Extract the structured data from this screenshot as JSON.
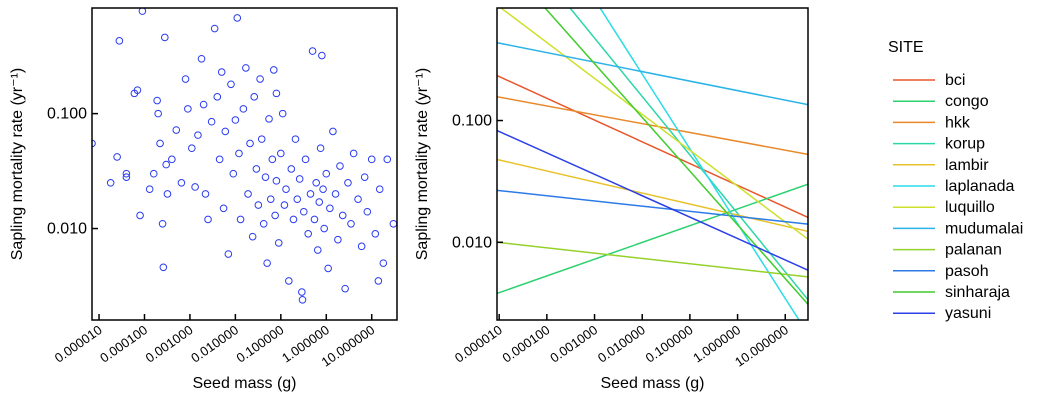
{
  "chart_data": [
    {
      "type": "scatter",
      "xlabel": "Seed mass (g)",
      "ylabel": "Sapling mortality rate (yr⁻¹)",
      "xscale": "log",
      "yscale": "log",
      "xlim": [
        7e-06,
        36
      ],
      "ylim": [
        0.0016,
        0.83
      ],
      "xticks": [
        {
          "value": 1e-05,
          "label": "0.000010"
        },
        {
          "value": 0.0001,
          "label": "0.000100"
        },
        {
          "value": 0.001,
          "label": "0.001000"
        },
        {
          "value": 0.01,
          "label": "0.010000"
        },
        {
          "value": 0.1,
          "label": "0.100000"
        },
        {
          "value": 1,
          "label": "1.000000"
        },
        {
          "value": 10,
          "label": "10.000000"
        }
      ],
      "yticks": [
        {
          "value": 0.01,
          "label": "0.010"
        },
        {
          "value": 0.1,
          "label": "0.100"
        }
      ],
      "color": "#2a3cf0",
      "x": [
        7e-06,
        1.8e-05,
        2.5e-05,
        2.8e-05,
        4e-05,
        4e-05,
        6e-05,
        7e-05,
        8e-05,
        9e-05,
        0.00013,
        0.00016,
        0.00019,
        0.0002,
        0.00022,
        0.00025,
        0.00026,
        0.00028,
        0.0003,
        0.00032,
        0.0004,
        0.0005,
        0.00065,
        0.0008,
        0.0009,
        0.0011,
        0.0013,
        0.0015,
        0.0018,
        0.002,
        0.0022,
        0.0025,
        0.003,
        0.0035,
        0.004,
        0.0045,
        0.005,
        0.0055,
        0.006,
        0.007,
        0.008,
        0.009,
        0.01,
        0.011,
        0.012,
        0.013,
        0.015,
        0.017,
        0.019,
        0.021,
        0.024,
        0.026,
        0.029,
        0.032,
        0.035,
        0.038,
        0.042,
        0.046,
        0.05,
        0.055,
        0.06,
        0.065,
        0.07,
        0.075,
        0.08,
        0.09,
        0.1,
        0.11,
        0.12,
        0.13,
        0.15,
        0.17,
        0.19,
        0.21,
        0.23,
        0.26,
        0.29,
        0.32,
        0.35,
        0.4,
        0.45,
        0.5,
        0.55,
        0.6,
        0.65,
        0.7,
        0.75,
        0.8,
        0.85,
        0.9,
        1,
        1.1,
        1.2,
        1.4,
        1.6,
        1.8,
        2,
        2.3,
        2.6,
        3,
        3.5,
        4,
        5,
        6,
        7,
        8,
        10,
        12,
        15,
        18,
        22,
        30,
        14,
        0.3,
        0.08
      ],
      "y": [
        0.055,
        0.025,
        0.042,
        0.43,
        0.03,
        0.028,
        0.15,
        0.16,
        0.013,
        0.78,
        0.022,
        0.03,
        0.13,
        0.1,
        0.055,
        0.011,
        0.0046,
        0.46,
        0.036,
        0.02,
        0.04,
        0.072,
        0.025,
        0.2,
        0.11,
        0.05,
        0.023,
        0.065,
        0.3,
        0.12,
        0.02,
        0.012,
        0.085,
        0.55,
        0.14,
        0.04,
        0.23,
        0.015,
        0.07,
        0.006,
        0.18,
        0.03,
        0.088,
        0.68,
        0.045,
        0.012,
        0.11,
        0.25,
        0.02,
        0.055,
        0.0085,
        0.14,
        0.033,
        0.016,
        0.2,
        0.06,
        0.011,
        0.028,
        0.005,
        0.09,
        0.018,
        0.04,
        0.24,
        0.013,
        0.026,
        0.0075,
        0.045,
        0.1,
        0.016,
        0.022,
        0.0035,
        0.033,
        0.012,
        0.06,
        0.018,
        0.027,
        0.0028,
        0.014,
        0.04,
        0.009,
        0.02,
        0.35,
        0.012,
        0.025,
        0.0065,
        0.017,
        0.05,
        0.32,
        0.022,
        0.01,
        0.03,
        0.0045,
        0.015,
        0.07,
        0.02,
        0.008,
        0.035,
        0.013,
        0.003,
        0.025,
        0.011,
        0.045,
        0.018,
        0.007,
        0.028,
        0.014,
        0.04,
        0.009,
        0.022,
        0.005,
        0.04,
        0.011,
        0.0035,
        0.0024,
        0.15
      ]
    },
    {
      "type": "line",
      "xlabel": "Seed mass (g)",
      "ylabel": "Sapling mortality rate (yr⁻¹)",
      "xscale": "log",
      "yscale": "log",
      "xlim": [
        9e-06,
        30
      ],
      "ylim": [
        0.0023,
        0.84
      ],
      "xticks": [
        {
          "value": 1e-05,
          "label": "0.000010"
        },
        {
          "value": 0.0001,
          "label": "0.000100"
        },
        {
          "value": 0.001,
          "label": "0.001000"
        },
        {
          "value": 0.01,
          "label": "0.010000"
        },
        {
          "value": 0.1,
          "label": "0.100000"
        },
        {
          "value": 1,
          "label": "1.000000"
        },
        {
          "value": 10,
          "label": "10.000000"
        }
      ],
      "yticks": [
        {
          "value": 0.01,
          "label": "0.010"
        },
        {
          "value": 0.1,
          "label": "0.100"
        }
      ],
      "legend_title": "SITE",
      "x": [
        9e-06,
        30
      ],
      "series": [
        {
          "name": "bci",
          "color": "#e8552b",
          "values": [
            0.234,
            0.016
          ]
        },
        {
          "name": "congo",
          "color": "#2bd16e",
          "values": [
            0.0038,
            0.03
          ]
        },
        {
          "name": "hkk",
          "color": "#e8892b",
          "values": [
            0.157,
            0.0527
          ]
        },
        {
          "name": "korup",
          "color": "#2bd6a8",
          "values": [
            4.57,
            0.00337
          ]
        },
        {
          "name": "lambir",
          "color": "#e8c22b",
          "values": [
            0.0479,
            0.0123
          ]
        },
        {
          "name": "laplanada",
          "color": "#2bdbe8",
          "values": [
            17.9,
            0.00176
          ]
        },
        {
          "name": "luquillo",
          "color": "#cde02b",
          "values": [
            0.89,
            0.0106
          ]
        },
        {
          "name": "mudumalai",
          "color": "#2bb3e8",
          "values": [
            0.436,
            0.135
          ]
        },
        {
          "name": "palanan",
          "color": "#94d12b",
          "values": [
            0.01,
            0.0052
          ]
        },
        {
          "name": "pasoh",
          "color": "#2b7ae8",
          "values": [
            0.0267,
            0.0141
          ]
        },
        {
          "name": "sinharaja",
          "color": "#40cc2b",
          "values": [
            2.34,
            0.0031
          ]
        },
        {
          "name": "yasuni",
          "color": "#2b40e8",
          "values": [
            0.0828,
            0.0059
          ]
        }
      ]
    }
  ]
}
